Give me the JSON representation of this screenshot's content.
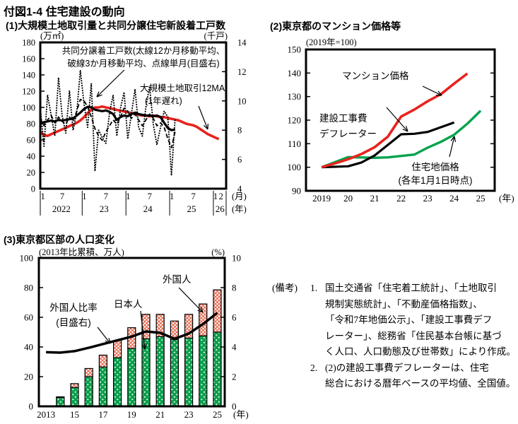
{
  "page": {
    "title": "付図1-4 住宅建設の動向"
  },
  "panels": {
    "p1": {
      "title": "(1)大規模土地取引量と共同分譲住宅新設着工戸数",
      "ann_starts_l1": "共同分譲着工戸数(太線12か月移動平均、",
      "ann_starts_l2": "破線3か月移動平均、点線単月(目盛右)",
      "ann_land_l1": "大規模土地取引12MA",
      "ann_land_l2": "(1年遅れ)"
    },
    "p2": {
      "title": "(2)東京都のマンション価格等",
      "ann_mansion": "マンション価格",
      "ann_deflator_l1": "建設工事費",
      "ann_deflator_l2": "デフレーター",
      "ann_land_l1": "住宅地価格",
      "ann_land_l2": "(各年1月1日時点)"
    },
    "p3": {
      "title": "(3)東京都区部の人口変化",
      "ann_ratio_l1": "外国人比率",
      "ann_ratio_l2": "(目盛右)",
      "ann_jp": "日本人",
      "ann_fr": "外国人"
    }
  },
  "notes": {
    "label": "(備考)",
    "items": [
      {
        "num": "1.",
        "lines": [
          "国土交通省「住宅着工統計」、「土地取引",
          "規制実態統計」、「不動産価格指数」、",
          "「令和7年地価公示」、「建設工事費デフ",
          "レーター」、総務省「住民基本台帳に基づ",
          "く人口、人口動態及び世帯数」により作成。"
        ]
      },
      {
        "num": "2.",
        "lines": [
          "(2)の建設工事費デフレーターは、住宅",
          "総合における暦年ベースの平均値、全国値。"
        ]
      }
    ]
  },
  "colors": {
    "red": "#e8231d",
    "green": "#00a34d",
    "bar_green": "#0ba04c",
    "bar_red": "#e56a50",
    "black": "#000000"
  },
  "chart_data": [
    {
      "type": "line",
      "title": "(1)大規模土地取引量と共同分譲住宅新設着工戸数",
      "left_axis": {
        "unit": "(万㎡)",
        "min": 0,
        "max": 180,
        "ticks": [
          180,
          160,
          140,
          120,
          100,
          80,
          60,
          40,
          20,
          0
        ]
      },
      "right_axis": {
        "unit": "(千戸)",
        "min": 4,
        "max": 14,
        "ticks": [
          14,
          12,
          10,
          8,
          6,
          4
        ]
      },
      "x_axis": {
        "min": 0,
        "max": 51,
        "unit_month": "(月)",
        "unit_year": "(年)",
        "month_ticks": [
          {
            "x": 0.7,
            "label": "1"
          },
          {
            "x": 6,
            "label": "7"
          },
          {
            "x": 12.1,
            "label": "1"
          },
          {
            "x": 18,
            "label": "7"
          },
          {
            "x": 24.1,
            "label": "1"
          },
          {
            "x": 30,
            "label": "7"
          },
          {
            "x": 36.1,
            "label": "1"
          },
          {
            "x": 42,
            "label": "7"
          },
          {
            "x": 48.1,
            "label": "1"
          },
          {
            "x": 49.6,
            "label": "2"
          }
        ],
        "year_ticks": [
          {
            "x": 5.8,
            "label": "2022"
          },
          {
            "x": 17.5,
            "label": "23"
          },
          {
            "x": 29.5,
            "label": "24"
          },
          {
            "x": 41.5,
            "label": "25"
          },
          {
            "x": 49.3,
            "label": "26"
          }
        ],
        "separators": [
          0,
          11.5,
          23.5,
          35.5,
          47.5,
          51
        ]
      },
      "series": [
        {
          "name": "大規模土地取引12MA(1年遅れ)",
          "axis": "left",
          "style": "red",
          "values": [
            70,
            66,
            65,
            67,
            69,
            71,
            73,
            75,
            77,
            79,
            81,
            84,
            88,
            93,
            97,
            100,
            100,
            101,
            100,
            99,
            98,
            97,
            96,
            95,
            94,
            93,
            92,
            91,
            90,
            90,
            89,
            90,
            89,
            88,
            88,
            87,
            86,
            85,
            84,
            82,
            80,
            79,
            78,
            76,
            73,
            70,
            67,
            65,
            63,
            61
          ]
        },
        {
          "name": "共同分譲着工戸数 12か月移動平均",
          "axis": "right",
          "style": "blackBold",
          "values": [
            8.4,
            8.55,
            8.6,
            8.65,
            8.6,
            8.7,
            8.65,
            8.7,
            8.75,
            8.8,
            9.0,
            9.2,
            9.45,
            9.6,
            9.55,
            9.4,
            9.35,
            9.3,
            9.35,
            9.25,
            9.1,
            8.7,
            8.9,
            9.0,
            8.95,
            9.1,
            9.2,
            9.1,
            9.05,
            9.0,
            9.0,
            8.95,
            9.0,
            8.9,
            8.5,
            8.15,
            8.0,
            8.05
          ]
        },
        {
          "name": "共同分譲着工戸数 3か月移動平均",
          "axis": "right",
          "style": "blackDash",
          "values": [
            8.8,
            8.3,
            8.7,
            9.0,
            8.5,
            8.9,
            8.6,
            8.4,
            8.9,
            8.6,
            9.3,
            10.1,
            10.0,
            9.6,
            8.9,
            8.1,
            7.6,
            7.3,
            7.9,
            8.3,
            8.7,
            8.4,
            8.9,
            9.5,
            9.3,
            8.8,
            9.1,
            8.7,
            8.3,
            8.7,
            9.1,
            8.8,
            8.3,
            8.5,
            8.2,
            7.4,
            6.8,
            7.9
          ]
        },
        {
          "name": "共同分譲着工戸数 単月",
          "axis": "right",
          "style": "blackDot",
          "values": [
            9.6,
            6.9,
            10.4,
            9.0,
            7.6,
            11.6,
            9.0,
            7.8,
            10.7,
            8.0,
            9.2,
            12.1,
            9.8,
            8.2,
            11.2,
            5.2,
            8.0,
            7.5,
            7.1,
            9.2,
            10.4,
            7.6,
            9.5,
            10.6,
            7.4,
            9.1,
            10.8,
            8.2,
            7.6,
            9.6,
            11.0,
            8.4,
            7.0,
            8.2,
            9.3,
            8.9,
            4.9,
            8.8
          ]
        }
      ]
    },
    {
      "type": "line",
      "title": "(2)東京都のマンション価格等",
      "left_axis": {
        "unit": "(2019年=100)",
        "min": 90,
        "max": 150,
        "ticks": [
          150,
          140,
          130,
          120,
          110,
          100,
          90
        ]
      },
      "x_axis": {
        "min": 2018.41,
        "max": 2025.53,
        "unit": "(年)",
        "ticks": [
          {
            "x": 2019,
            "label": "2019"
          },
          {
            "x": 2020,
            "label": "20"
          },
          {
            "x": 2021,
            "label": "21"
          },
          {
            "x": 2022,
            "label": "22"
          },
          {
            "x": 2023,
            "label": "23"
          },
          {
            "x": 2024,
            "label": "24"
          },
          {
            "x": 2025,
            "label": "25"
          }
        ]
      },
      "series": [
        {
          "name": "住宅地価格(各年1月1日時点)",
          "style": "green",
          "points": [
            [
              2019,
              100
            ],
            [
              2020,
              104.3
            ],
            [
              2021,
              104.0
            ],
            [
              2021.5,
              104.2
            ],
            [
              2022,
              104.8
            ],
            [
              2022.5,
              105.4
            ],
            [
              2023,
              108.3
            ],
            [
              2023.5,
              110.8
            ],
            [
              2024,
              113.8
            ],
            [
              2024.5,
              118.5
            ],
            [
              2025,
              124
            ]
          ]
        },
        {
          "name": "建設工事費デフレーター",
          "style": "blackBold",
          "points": [
            [
              2019,
              100
            ],
            [
              2020,
              100.4
            ],
            [
              2020.5,
              102
            ],
            [
              2021,
              105
            ],
            [
              2021.5,
              109.5
            ],
            [
              2022,
              114
            ],
            [
              2022.5,
              114.2
            ],
            [
              2023,
              115
            ],
            [
              2023.5,
              117
            ],
            [
              2024,
              119
            ]
          ]
        },
        {
          "name": "マンション価格",
          "style": "red",
          "points": [
            [
              2019,
              100
            ],
            [
              2019.5,
              101.6
            ],
            [
              2020,
              103.4
            ],
            [
              2020.5,
              105.6
            ],
            [
              2021,
              108.5
            ],
            [
              2021.5,
              113
            ],
            [
              2022,
              121.5
            ],
            [
              2022.5,
              124.5
            ],
            [
              2023,
              128
            ],
            [
              2023.5,
              131
            ],
            [
              2024,
              135.5
            ],
            [
              2024.5,
              139.8
            ]
          ]
        }
      ]
    },
    {
      "type": "bar-line",
      "title": "(3)東京都区部の人口変化",
      "left_axis": {
        "unit": "(2013年比累積、万人)",
        "min": 0,
        "max": 100,
        "ticks": [
          100,
          80,
          60,
          40,
          20,
          0
        ]
      },
      "right_axis": {
        "unit": "(%)",
        "min": 0,
        "max": 10,
        "ticks": [
          10,
          8,
          6,
          4,
          2,
          0
        ]
      },
      "x_axis": {
        "min": 2012.5,
        "max": 2025.52,
        "unit": "(年)",
        "categories": [
          2013,
          2014,
          2015,
          2016,
          2017,
          2018,
          2019,
          2020,
          2021,
          2022,
          2023,
          2024,
          2025
        ],
        "tick_labels": [
          {
            "x": 2013,
            "label": "2013"
          },
          {
            "x": 2015,
            "label": "15"
          },
          {
            "x": 2017,
            "label": "17"
          },
          {
            "x": 2019,
            "label": "19"
          },
          {
            "x": 2021,
            "label": "21"
          },
          {
            "x": 2023,
            "label": "23"
          },
          {
            "x": 2025,
            "label": "25"
          }
        ]
      },
      "bars": [
        {
          "name": "日本人",
          "style": "green-dotted-bar",
          "values": [
            0,
            6,
            12.7,
            20,
            26.5,
            32.8,
            39,
            45.5,
            47,
            45,
            46,
            47.5,
            50
          ]
        },
        {
          "name": "外国人",
          "style": "red-hatch-bar",
          "values": [
            0,
            0.4,
            2.6,
            5.5,
            8,
            11.5,
            14,
            16.5,
            15,
            12.5,
            16,
            21.5,
            28.5
          ]
        }
      ],
      "series": [
        {
          "name": "外国人比率(目盛右)",
          "axis": "right",
          "style": "ratio",
          "points": [
            [
              2013,
              3.65
            ],
            [
              2014,
              3.62
            ],
            [
              2015,
              3.72
            ],
            [
              2016,
              3.95
            ],
            [
              2017,
              4.2
            ],
            [
              2018,
              4.45
            ],
            [
              2019,
              4.7
            ],
            [
              2020,
              5.05
            ],
            [
              2021,
              4.95
            ],
            [
              2022,
              4.55
            ],
            [
              2023,
              4.9
            ],
            [
              2024,
              5.55
            ],
            [
              2025,
              6.3
            ]
          ]
        }
      ]
    }
  ]
}
